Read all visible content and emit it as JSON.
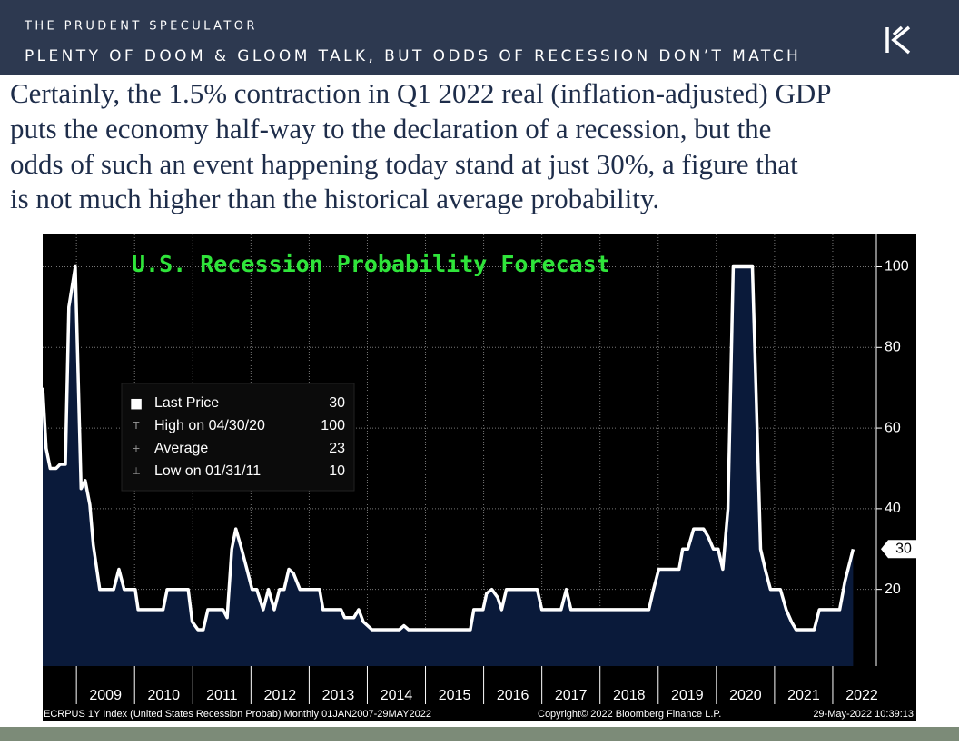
{
  "header": {
    "brand": "THE PRUDENT SPECULATOR",
    "headline": "PLENTY OF DOOM & GLOOM TALK, BUT ODDS OF RECESSION DON’T MATCH"
  },
  "body": {
    "lines": [
      "Certainly, the 1.5% contraction in Q1 2022 real (inflation-adjusted) GDP",
      "puts the economy half-way to the declaration of a recession, but the",
      "odds of such an event happening today stand at just 30%, a figure that",
      "is not much higher than the historical average probability."
    ]
  },
  "chart_data": {
    "type": "area",
    "title": "U.S. Recession Probability Forecast",
    "x": [
      2008.42,
      2008.48,
      2008.55,
      2008.65,
      2008.72,
      2008.81,
      2008.87,
      2008.98,
      2009.08,
      2009.15,
      2009.23,
      2009.29,
      2009.4,
      2009.64,
      2009.73,
      2009.82,
      2010.01,
      2010.06,
      2010.49,
      2010.56,
      2010.92,
      2010.99,
      2011.09,
      2011.18,
      2011.26,
      2011.52,
      2011.59,
      2011.67,
      2011.74,
      2011.84,
      2011.93,
      2012.02,
      2012.1,
      2012.21,
      2012.3,
      2012.4,
      2012.49,
      2012.57,
      2012.65,
      2012.73,
      2012.84,
      2013.18,
      2013.24,
      2013.55,
      2013.61,
      2013.77,
      2013.85,
      2013.93,
      2014.08,
      2014.55,
      2014.63,
      2014.71,
      2015.77,
      2015.83,
      2015.99,
      2016.05,
      2016.14,
      2016.24,
      2016.31,
      2016.39,
      2016.92,
      2017.0,
      2017.33,
      2017.42,
      2017.5,
      2018.84,
      2018.92,
      2019.01,
      2019.36,
      2019.42,
      2019.51,
      2019.61,
      2019.78,
      2019.86,
      2019.95,
      2020.03,
      2020.11,
      2020.2,
      2020.29,
      2020.62,
      2020.68,
      2020.76,
      2020.84,
      2020.93,
      2021.1,
      2021.2,
      2021.29,
      2021.37,
      2021.68,
      2021.77,
      2022.12,
      2022.21,
      2022.35
    ],
    "series": [
      {
        "name": "Last Price",
        "color": "#ffffff",
        "fill": "#0a1a3a",
        "values": [
          70,
          55,
          50,
          50,
          51,
          51,
          90,
          100,
          45,
          47,
          41,
          31,
          20,
          20,
          25,
          20,
          20,
          15,
          15,
          20,
          20,
          12,
          10,
          10,
          15,
          15,
          13,
          30,
          35,
          30,
          25,
          20,
          20,
          15,
          20,
          15,
          20,
          20,
          25,
          24,
          20,
          20,
          15,
          15,
          13,
          13,
          15,
          12,
          10,
          10,
          11,
          10,
          10,
          15,
          15,
          19,
          20,
          18,
          15,
          20,
          20,
          15,
          15,
          20,
          15,
          15,
          20,
          25,
          25,
          30,
          30,
          35,
          35,
          33,
          30,
          30,
          25,
          40,
          100,
          100,
          70,
          30,
          25,
          20,
          20,
          15,
          12,
          10,
          10,
          15,
          15,
          22,
          30
        ]
      }
    ],
    "xlim": [
      2008.42,
      2022.75
    ],
    "xticks": [
      2009,
      2010,
      2011,
      2012,
      2013,
      2014,
      2015,
      2016,
      2017,
      2018,
      2019,
      2020,
      2021,
      2022
    ],
    "ylim": [
      1,
      108
    ],
    "yticks": [
      20,
      40,
      60,
      80,
      100
    ],
    "grid": true,
    "stats": [
      {
        "label": "Last Price",
        "value": 30
      },
      {
        "label": "High on 04/30/20",
        "value": 100
      },
      {
        "label": "Average",
        "value": 23
      },
      {
        "label": "Low on 01/31/11",
        "value": 10
      }
    ],
    "footer": [
      "ECRPUS 1Y Index (United States Recession Probab)  Monthly 01JAN2007-29MAY2022",
      "Copyright© 2022 Bloomberg Finance L.P.",
      "29-May-2022 10:39:13"
    ]
  }
}
